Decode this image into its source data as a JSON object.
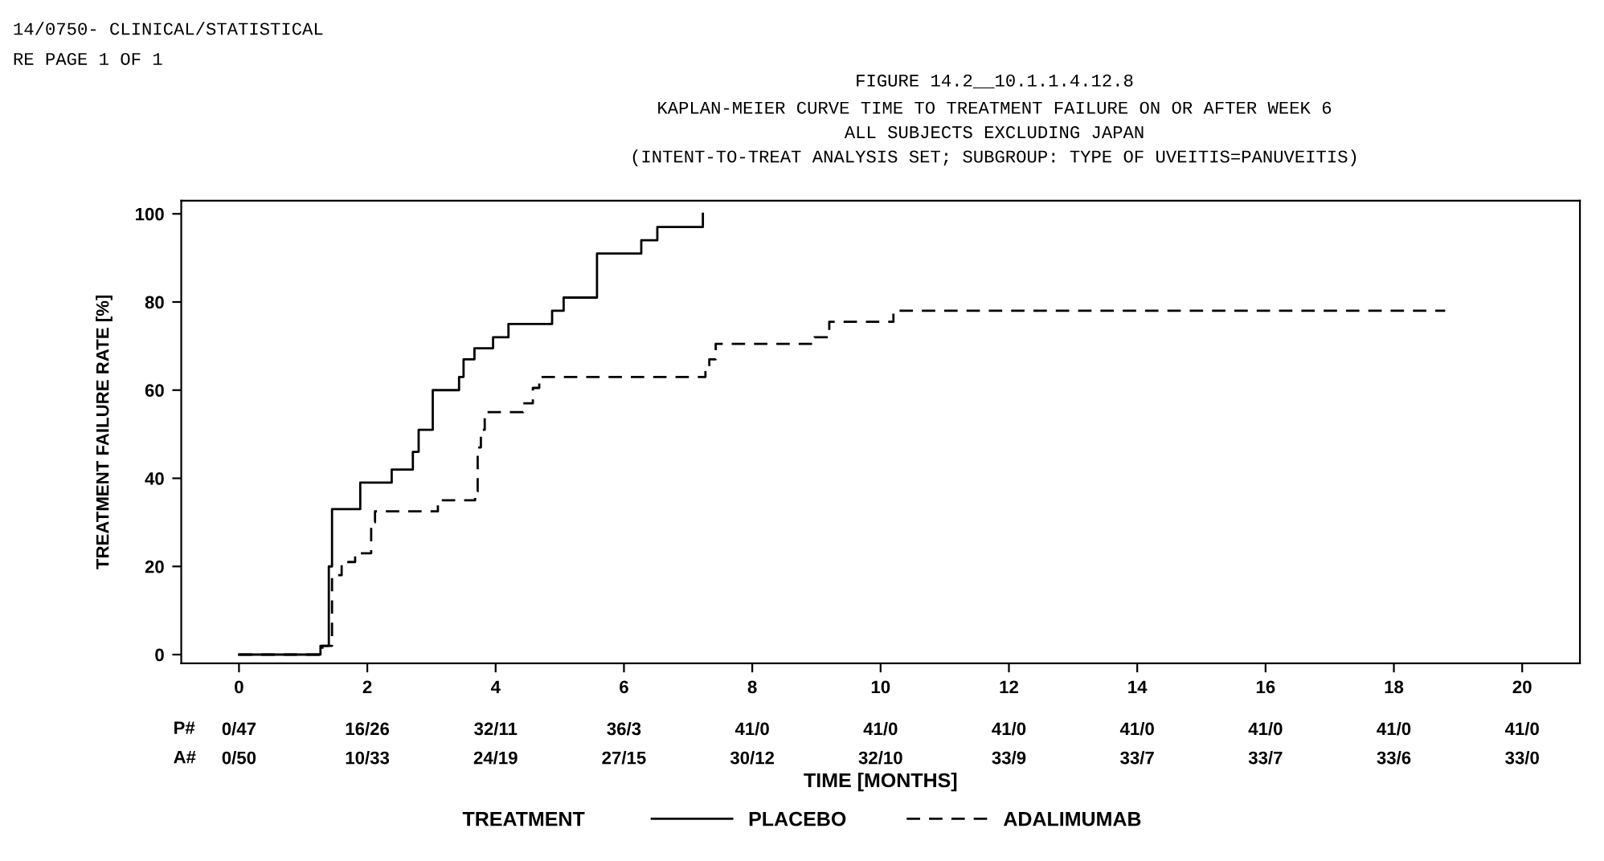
{
  "chart_data": {
    "type": "step",
    "title": "FIGURE 14.2__10.1.1.4.12.8",
    "subtitle": "KAPLAN-MEIER CURVE TIME TO TREATMENT FAILURE ON OR AFTER WEEK 6\nALL SUBJECTS EXCLUDING JAPAN\n(INTENT-TO-TREAT ANALYSIS SET; SUBGROUP: TYPE OF UVEITIS=PANUVEITIS)",
    "xlabel": "TIME [MONTHS]",
    "ylabel": "TREATMENT FAILURE RATE [%]",
    "legend_title": "TREATMENT",
    "annotations": [
      "14/0750- CLINICAL/STATISTICAL",
      "RE PAGE 1 OF 1",
      "P#",
      "A#",
      "0/47",
      "16/26",
      "32/11",
      "36/3",
      "41/0",
      "41/0",
      "41/0",
      "41/0",
      "41/0",
      "41/0",
      "41/0",
      "0/50",
      "10/33",
      "24/19",
      "27/15",
      "30/12",
      "32/10",
      "33/9",
      "33/7",
      "33/7",
      "33/6",
      "33/0"
    ],
    "series": [
      {
        "name": "PLACEBO",
        "color": "#000000",
        "line_style": "solid",
        "x": [
          0,
          1.27,
          1.4,
          1.45,
          1.89,
          2.38,
          2.71,
          2.8,
          3.02,
          3.43,
          3.5,
          3.67,
          3.96,
          4.2,
          4.88,
          5.06,
          5.58,
          6.27,
          6.52,
          7.23
        ],
        "values": [
          0,
          2,
          20,
          33,
          39,
          42,
          46,
          51,
          60,
          63,
          67,
          69.5,
          72,
          75,
          78,
          81,
          91,
          94,
          97,
          100
        ]
      },
      {
        "name": "ADALIMUMAB",
        "color": "#000000",
        "line_style": "dashed",
        "x": [
          0,
          1.3,
          1.45,
          1.6,
          1.81,
          2.06,
          2.12,
          2.18,
          3.1,
          3.68,
          3.72,
          3.77,
          3.83,
          3.98,
          4.43,
          4.58,
          4.68,
          7.27,
          7.33,
          7.43,
          8.97,
          9.2,
          10.2,
          18.8
        ],
        "values": [
          0,
          2,
          18,
          21,
          23,
          30,
          32.5,
          32.5,
          35,
          37,
          47,
          51,
          55,
          55,
          57,
          60.5,
          63,
          65,
          67,
          70.5,
          72,
          75.5,
          78,
          78
        ]
      }
    ],
    "xlim": [
      -0.9,
      20.9
    ],
    "ylim": [
      -2,
      103
    ],
    "xticks": [
      0,
      2,
      4,
      6,
      8,
      10,
      12,
      14,
      16,
      18,
      20
    ],
    "yticks": [
      0,
      20,
      40,
      60,
      80,
      100
    ],
    "grid": false,
    "legend": "bottom",
    "marker": "none"
  }
}
